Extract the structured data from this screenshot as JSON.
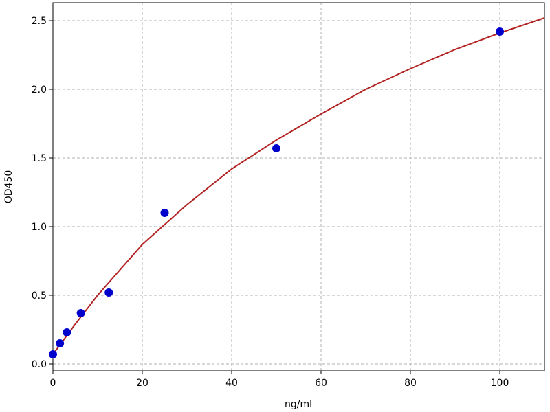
{
  "chart_data": {
    "type": "scatter",
    "xlabel": "ng/ml",
    "ylabel": "OD450",
    "xlim": [
      0,
      110
    ],
    "ylim": [
      -0.05,
      2.63
    ],
    "xticks": [
      0,
      20,
      40,
      60,
      80,
      100
    ],
    "yticks": [
      {
        "value": 0,
        "label": "0.0"
      },
      0.5,
      {
        "value": 1,
        "label": "1.0"
      },
      1.5,
      {
        "value": 2,
        "label": "2.0"
      },
      2.5
    ],
    "grid": true,
    "series": [
      {
        "mode": "line",
        "color": "#b22222",
        "x": [
          0,
          5,
          10,
          20,
          30,
          40,
          50,
          60,
          70,
          80,
          90,
          100,
          110
        ],
        "values": [
          0.07,
          0.29,
          0.5,
          0.87,
          1.16,
          1.42,
          1.63,
          1.82,
          2.0,
          2.15,
          2.29,
          2.41,
          2.52
        ]
      },
      {
        "mode": "markers",
        "color": "#0000cc",
        "x": [
          0,
          1.56,
          3.125,
          6.25,
          12.5,
          25,
          50,
          100
        ],
        "values": [
          0.07,
          0.15,
          0.23,
          0.37,
          0.52,
          1.1,
          1.57,
          2.42
        ]
      }
    ]
  }
}
